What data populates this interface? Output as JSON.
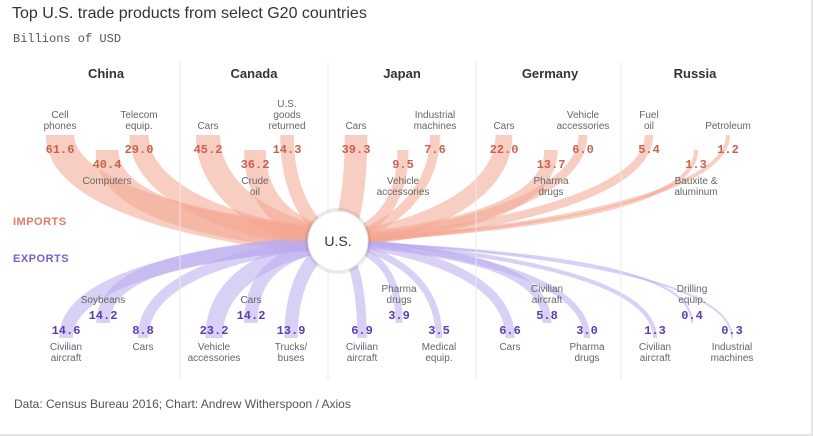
{
  "title": "Top U.S. trade products from select G20 countries",
  "subtitle": "Billions of USD",
  "source": "Data: Census Bureau 2016; Chart: Andrew Witherspoon / Axios",
  "legend": {
    "imports": "IMPORTS",
    "exports": "EXPORTS"
  },
  "hub_label": "U.S.",
  "colors": {
    "imports": "#f4a58f",
    "exports": "#b9a9ef",
    "imports_text": "#c9624d",
    "exports_text": "#5b3db0"
  },
  "chart_data": {
    "type": "flow",
    "unit": "Billions of USD",
    "countries": [
      {
        "name": "China",
        "imports": [
          {
            "label": "Cell\nphones",
            "value": 61.6,
            "value_text": "61.6"
          },
          {
            "label": "Computers",
            "value": 40.4,
            "value_text": "40.4"
          },
          {
            "label": "Telecom\nequip.",
            "value": 29.0,
            "value_text": "29.0"
          }
        ],
        "exports": [
          {
            "label": "Civilian\naircraft",
            "value": 14.6,
            "value_text": "14.6"
          },
          {
            "label": "Soybeans",
            "value": 14.2,
            "value_text": "14.2"
          },
          {
            "label": "Cars",
            "value": 8.8,
            "value_text": "8.8"
          }
        ]
      },
      {
        "name": "Canada",
        "imports": [
          {
            "label": "Cars",
            "value": 45.2,
            "value_text": "45.2"
          },
          {
            "label": "Crude\noil",
            "value": 36.2,
            "value_text": "36.2"
          },
          {
            "label": "U.S.\ngoods\nreturned",
            "value": 14.3,
            "value_text": "14.3"
          }
        ],
        "exports": [
          {
            "label": "Vehicle\naccessories",
            "value": 23.2,
            "value_text": "23.2"
          },
          {
            "label": "Cars",
            "value": 14.2,
            "value_text": "14.2"
          },
          {
            "label": "Trucks/\nbuses",
            "value": 13.9,
            "value_text": "13.9"
          }
        ]
      },
      {
        "name": "Japan",
        "imports": [
          {
            "label": "Cars",
            "value": 39.3,
            "value_text": "39.3"
          },
          {
            "label": "Vehicle\naccessories",
            "value": 9.5,
            "value_text": "9.5"
          },
          {
            "label": "Industrial\nmachines",
            "value": 7.6,
            "value_text": "7.6"
          }
        ],
        "exports": [
          {
            "label": "Civilian\naircraft",
            "value": 6.9,
            "value_text": "6.9"
          },
          {
            "label": "Pharma\ndrugs",
            "value": 3.9,
            "value_text": "3.9"
          },
          {
            "label": "Medical\nequip.",
            "value": 3.5,
            "value_text": "3.5"
          }
        ]
      },
      {
        "name": "Germany",
        "imports": [
          {
            "label": "Cars",
            "value": 22.0,
            "value_text": "22.0"
          },
          {
            "label": "Pharma\ndrugs",
            "value": 13.7,
            "value_text": "13.7"
          },
          {
            "label": "Vehicle\naccessories",
            "value": 6.0,
            "value_text": "6.0"
          }
        ],
        "exports": [
          {
            "label": "Cars",
            "value": 6.6,
            "value_text": "6.6"
          },
          {
            "label": "Civilian\naircraft",
            "value": 5.8,
            "value_text": "5.8"
          },
          {
            "label": "Pharma\ndrugs",
            "value": 3.0,
            "value_text": "3.0"
          }
        ]
      },
      {
        "name": "Russia",
        "imports": [
          {
            "label": "Fuel\noil",
            "value": 5.4,
            "value_text": "5.4"
          },
          {
            "label": "Bauxite &\naluminum",
            "value": 1.3,
            "value_text": "1.3"
          },
          {
            "label": "Petroleum",
            "value": 1.2,
            "value_text": "1.2"
          }
        ],
        "exports": [
          {
            "label": "Civilian\naircraft",
            "value": 1.3,
            "value_text": "1.3"
          },
          {
            "label": "Drilling\nequip.",
            "value": 0.4,
            "value_text": "0.4"
          },
          {
            "label": "Industrial\nmachines",
            "value": 0.3,
            "value_text": "0.3"
          }
        ]
      }
    ]
  }
}
